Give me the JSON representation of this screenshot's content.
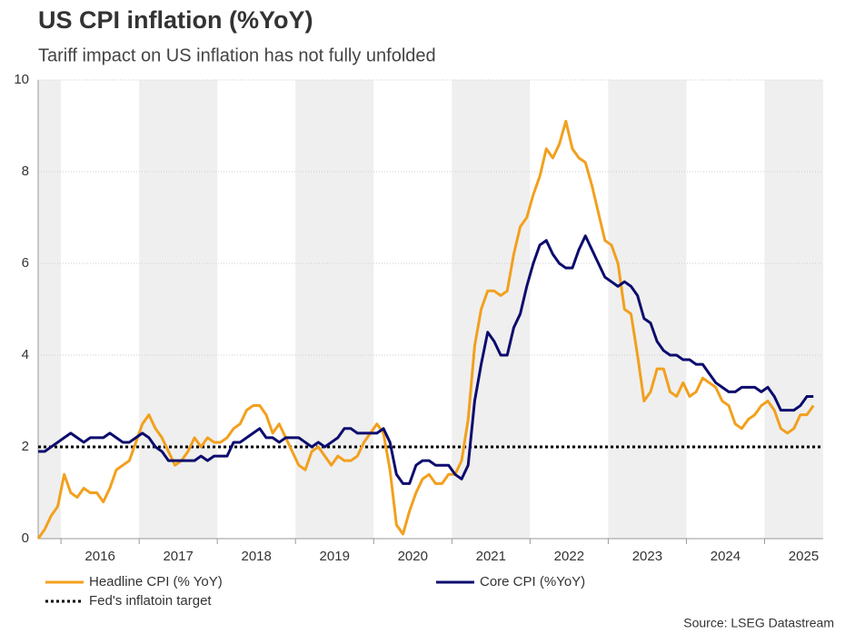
{
  "chart_data": {
    "type": "line",
    "title": "US CPI inflation (%YoY)",
    "subtitle": "Tariff impact on US inflation has not fully unfolded",
    "source": "Source: LSEG Datastream",
    "x": [
      "2015-09",
      "2015-10",
      "2015-11",
      "2015-12",
      "2016-01",
      "2016-02",
      "2016-03",
      "2016-04",
      "2016-05",
      "2016-06",
      "2016-07",
      "2016-08",
      "2016-09",
      "2016-10",
      "2016-11",
      "2016-12",
      "2017-01",
      "2017-02",
      "2017-03",
      "2017-04",
      "2017-05",
      "2017-06",
      "2017-07",
      "2017-08",
      "2017-09",
      "2017-10",
      "2017-11",
      "2017-12",
      "2018-01",
      "2018-02",
      "2018-03",
      "2018-04",
      "2018-05",
      "2018-06",
      "2018-07",
      "2018-08",
      "2018-09",
      "2018-10",
      "2018-11",
      "2018-12",
      "2019-01",
      "2019-02",
      "2019-03",
      "2019-04",
      "2019-05",
      "2019-06",
      "2019-07",
      "2019-08",
      "2019-09",
      "2019-10",
      "2019-11",
      "2019-12",
      "2020-01",
      "2020-02",
      "2020-03",
      "2020-04",
      "2020-05",
      "2020-06",
      "2020-07",
      "2020-08",
      "2020-09",
      "2020-10",
      "2020-11",
      "2020-12",
      "2021-01",
      "2021-02",
      "2021-03",
      "2021-04",
      "2021-05",
      "2021-06",
      "2021-07",
      "2021-08",
      "2021-09",
      "2021-10",
      "2021-11",
      "2021-12",
      "2022-01",
      "2022-02",
      "2022-03",
      "2022-04",
      "2022-05",
      "2022-06",
      "2022-07",
      "2022-08",
      "2022-09",
      "2022-10",
      "2022-11",
      "2022-12",
      "2023-01",
      "2023-02",
      "2023-03",
      "2023-04",
      "2023-05",
      "2023-06",
      "2023-07",
      "2023-08",
      "2023-09",
      "2023-10",
      "2023-11",
      "2023-12",
      "2024-01",
      "2024-02",
      "2024-03",
      "2024-04",
      "2024-05",
      "2024-06",
      "2024-07",
      "2024-08",
      "2024-09",
      "2024-10",
      "2024-11",
      "2024-12",
      "2025-01",
      "2025-02",
      "2025-03",
      "2025-04",
      "2025-05",
      "2025-06",
      "2025-07",
      "2025-08"
    ],
    "series": [
      {
        "name": "Headline CPI (% YoY)",
        "color": "#f2a01e",
        "values": [
          0.0,
          0.2,
          0.5,
          0.7,
          1.4,
          1.0,
          0.9,
          1.1,
          1.0,
          1.0,
          0.8,
          1.1,
          1.5,
          1.6,
          1.7,
          2.1,
          2.5,
          2.7,
          2.4,
          2.2,
          1.9,
          1.6,
          1.7,
          1.9,
          2.2,
          2.0,
          2.2,
          2.1,
          2.1,
          2.2,
          2.4,
          2.5,
          2.8,
          2.9,
          2.9,
          2.7,
          2.3,
          2.5,
          2.2,
          1.9,
          1.6,
          1.5,
          1.9,
          2.0,
          1.8,
          1.6,
          1.8,
          1.7,
          1.7,
          1.8,
          2.1,
          2.3,
          2.5,
          2.3,
          1.5,
          0.3,
          0.1,
          0.6,
          1.0,
          1.3,
          1.4,
          1.2,
          1.2,
          1.4,
          1.4,
          1.7,
          2.6,
          4.2,
          5.0,
          5.4,
          5.4,
          5.3,
          5.4,
          6.2,
          6.8,
          7.0,
          7.5,
          7.9,
          8.5,
          8.3,
          8.6,
          9.1,
          8.5,
          8.3,
          8.2,
          7.7,
          7.1,
          6.5,
          6.4,
          6.0,
          5.0,
          4.9,
          4.0,
          3.0,
          3.2,
          3.7,
          3.7,
          3.2,
          3.1,
          3.4,
          3.1,
          3.2,
          3.5,
          3.4,
          3.3,
          3.0,
          2.9,
          2.5,
          2.4,
          2.6,
          2.7,
          2.9,
          3.0,
          2.8,
          2.4,
          2.3,
          2.4,
          2.7,
          2.7,
          2.9
        ]
      },
      {
        "name": "Core CPI (%YoY)",
        "color": "#0c0c6e",
        "values": [
          1.9,
          1.9,
          2.0,
          2.1,
          2.2,
          2.3,
          2.2,
          2.1,
          2.2,
          2.2,
          2.2,
          2.3,
          2.2,
          2.1,
          2.1,
          2.2,
          2.3,
          2.2,
          2.0,
          1.9,
          1.7,
          1.7,
          1.7,
          1.7,
          1.7,
          1.8,
          1.7,
          1.8,
          1.8,
          1.8,
          2.1,
          2.1,
          2.2,
          2.3,
          2.4,
          2.2,
          2.2,
          2.1,
          2.2,
          2.2,
          2.2,
          2.1,
          2.0,
          2.1,
          2.0,
          2.1,
          2.2,
          2.4,
          2.4,
          2.3,
          2.3,
          2.3,
          2.3,
          2.4,
          2.1,
          1.4,
          1.2,
          1.2,
          1.6,
          1.7,
          1.7,
          1.6,
          1.6,
          1.6,
          1.4,
          1.3,
          1.6,
          3.0,
          3.8,
          4.5,
          4.3,
          4.0,
          4.0,
          4.6,
          4.9,
          5.5,
          6.0,
          6.4,
          6.5,
          6.2,
          6.0,
          5.9,
          5.9,
          6.3,
          6.6,
          6.3,
          6.0,
          5.7,
          5.6,
          5.5,
          5.6,
          5.5,
          5.3,
          4.8,
          4.7,
          4.3,
          4.1,
          4.0,
          4.0,
          3.9,
          3.9,
          3.8,
          3.8,
          3.6,
          3.4,
          3.3,
          3.2,
          3.2,
          3.3,
          3.3,
          3.3,
          3.2,
          3.3,
          3.1,
          2.8,
          2.8,
          2.8,
          2.9,
          3.1,
          3.1
        ]
      }
    ],
    "reference_line": {
      "name": "Fed's inflatoin target",
      "value": 2,
      "color": "#000000"
    },
    "ylim": [
      0,
      10
    ],
    "yticks": [
      0,
      2,
      4,
      6,
      8,
      10
    ],
    "xticks": [
      2016,
      2017,
      2018,
      2019,
      2020,
      2021,
      2022,
      2023,
      2024,
      2025
    ],
    "grid": true,
    "legend": "bottom"
  }
}
